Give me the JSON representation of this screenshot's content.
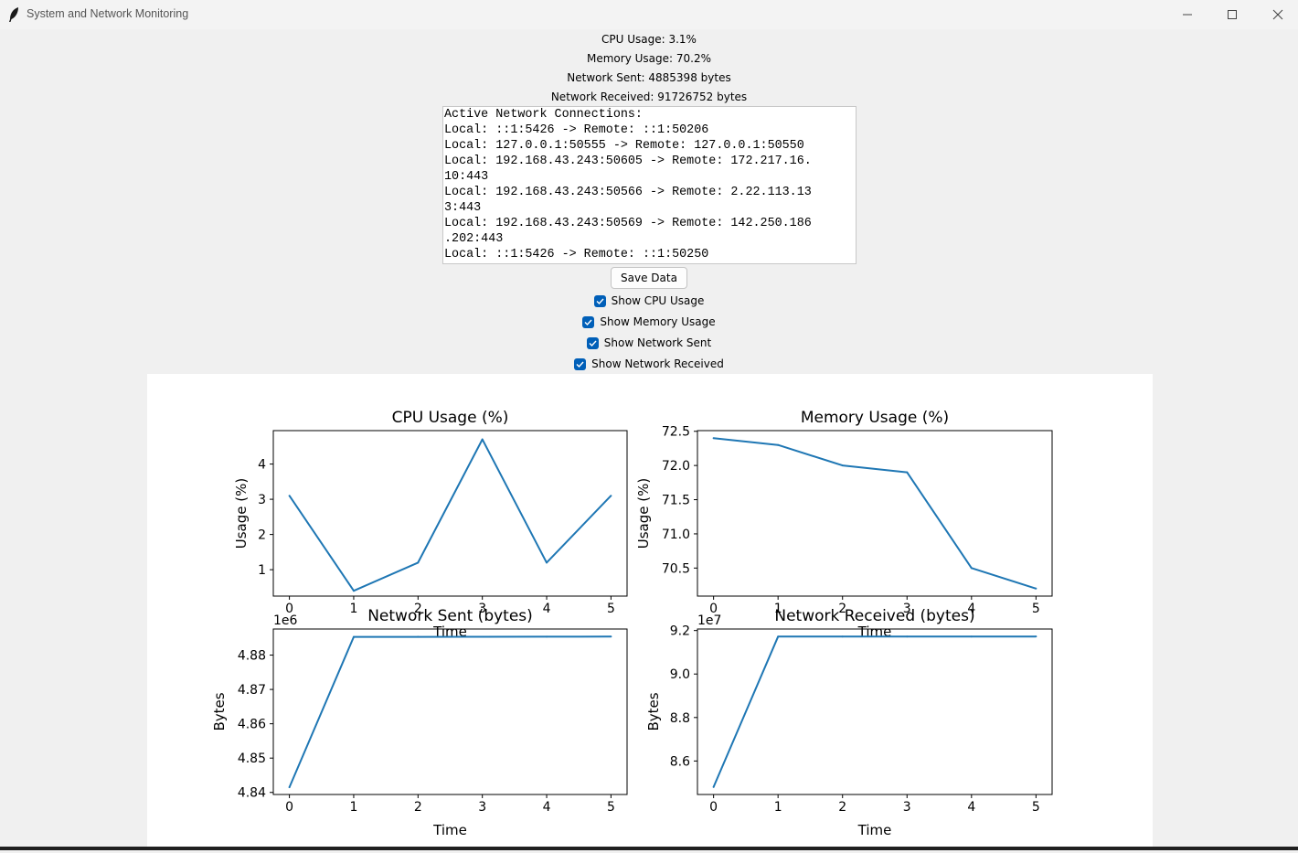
{
  "window": {
    "title": "System and Network Monitoring"
  },
  "stats": {
    "cpu": "CPU Usage: 3.1%",
    "memory": "Memory Usage: 70.2%",
    "net_sent": "Network Sent: 4885398 bytes",
    "net_recv": "Network Received: 91726752 bytes"
  },
  "connections": {
    "lines": [
      "Active Network Connections:",
      "Local: ::1:5426 -> Remote: ::1:50206",
      "Local: 127.0.0.1:50555 -> Remote: 127.0.0.1:50550",
      "Local: 192.168.43.243:50605 -> Remote: 172.217.16.",
      "10:443",
      "Local: 192.168.43.243:50566 -> Remote: 2.22.113.13",
      "3:443",
      "Local: 192.168.43.243:50569 -> Remote: 142.250.186",
      ".202:443",
      "Local: ::1:5426 -> Remote: ::1:50250"
    ]
  },
  "save_button": {
    "label": "Save Data"
  },
  "checkboxes": [
    {
      "label": "Show CPU Usage",
      "checked": true
    },
    {
      "label": "Show Memory Usage",
      "checked": true
    },
    {
      "label": "Show Network Sent",
      "checked": true
    },
    {
      "label": "Show Network Received",
      "checked": true
    }
  ],
  "colors": {
    "line": "#1f77b4",
    "checkbox": "#005fb8"
  },
  "chart_data": [
    {
      "type": "line",
      "title": "CPU Usage (%)",
      "xlabel": "Time",
      "ylabel": "Usage (%)",
      "x": [
        0,
        1,
        2,
        3,
        4,
        5
      ],
      "values": [
        3.1,
        0.4,
        1.2,
        4.7,
        1.2,
        3.1
      ],
      "xlim": [
        -0.25,
        5.25
      ],
      "ylim": [
        0.25,
        4.95
      ],
      "yticks": [
        1,
        2,
        3,
        4
      ],
      "ytick_labels": [
        "1",
        "2",
        "3",
        "4"
      ],
      "offset_label": ""
    },
    {
      "type": "line",
      "title": "Memory Usage (%)",
      "xlabel": "Time",
      "ylabel": "Usage (%)",
      "x": [
        0,
        1,
        2,
        3,
        4,
        5
      ],
      "values": [
        72.4,
        72.3,
        72.0,
        71.9,
        70.5,
        70.2
      ],
      "xlim": [
        -0.25,
        5.25
      ],
      "ylim": [
        70.09,
        72.51
      ],
      "yticks": [
        70.5,
        71.0,
        71.5,
        72.0,
        72.5
      ],
      "ytick_labels": [
        "70.5",
        "71.0",
        "71.5",
        "72.0",
        "72.5"
      ],
      "offset_label": ""
    },
    {
      "type": "line",
      "title": "Network Sent (bytes)",
      "xlabel": "Time",
      "ylabel": "Bytes",
      "x": [
        0,
        1,
        2,
        3,
        4,
        5
      ],
      "values": [
        4841500,
        4885300,
        4885320,
        4885340,
        4885370,
        4885398
      ],
      "xlim": [
        -0.25,
        5.25
      ],
      "ylim": [
        4839400,
        4887600
      ],
      "yticks": [
        4840000,
        4850000,
        4860000,
        4870000,
        4880000
      ],
      "ytick_labels": [
        "4.84",
        "4.85",
        "4.86",
        "4.87",
        "4.88"
      ],
      "offset_label": "1e6"
    },
    {
      "type": "line",
      "title": "Network Received (bytes)",
      "xlabel": "Time",
      "ylabel": "Bytes",
      "x": [
        0,
        1,
        2,
        3,
        4,
        5
      ],
      "values": [
        84800000,
        91720000,
        91722000,
        91724000,
        91725500,
        91726752
      ],
      "xlim": [
        -0.25,
        5.25
      ],
      "ylim": [
        84460000,
        92070000
      ],
      "yticks": [
        86000000,
        88000000,
        90000000,
        92000000
      ],
      "ytick_labels": [
        "8.6",
        "8.8",
        "9.0",
        "9.2"
      ],
      "offset_label": "1e7"
    }
  ]
}
